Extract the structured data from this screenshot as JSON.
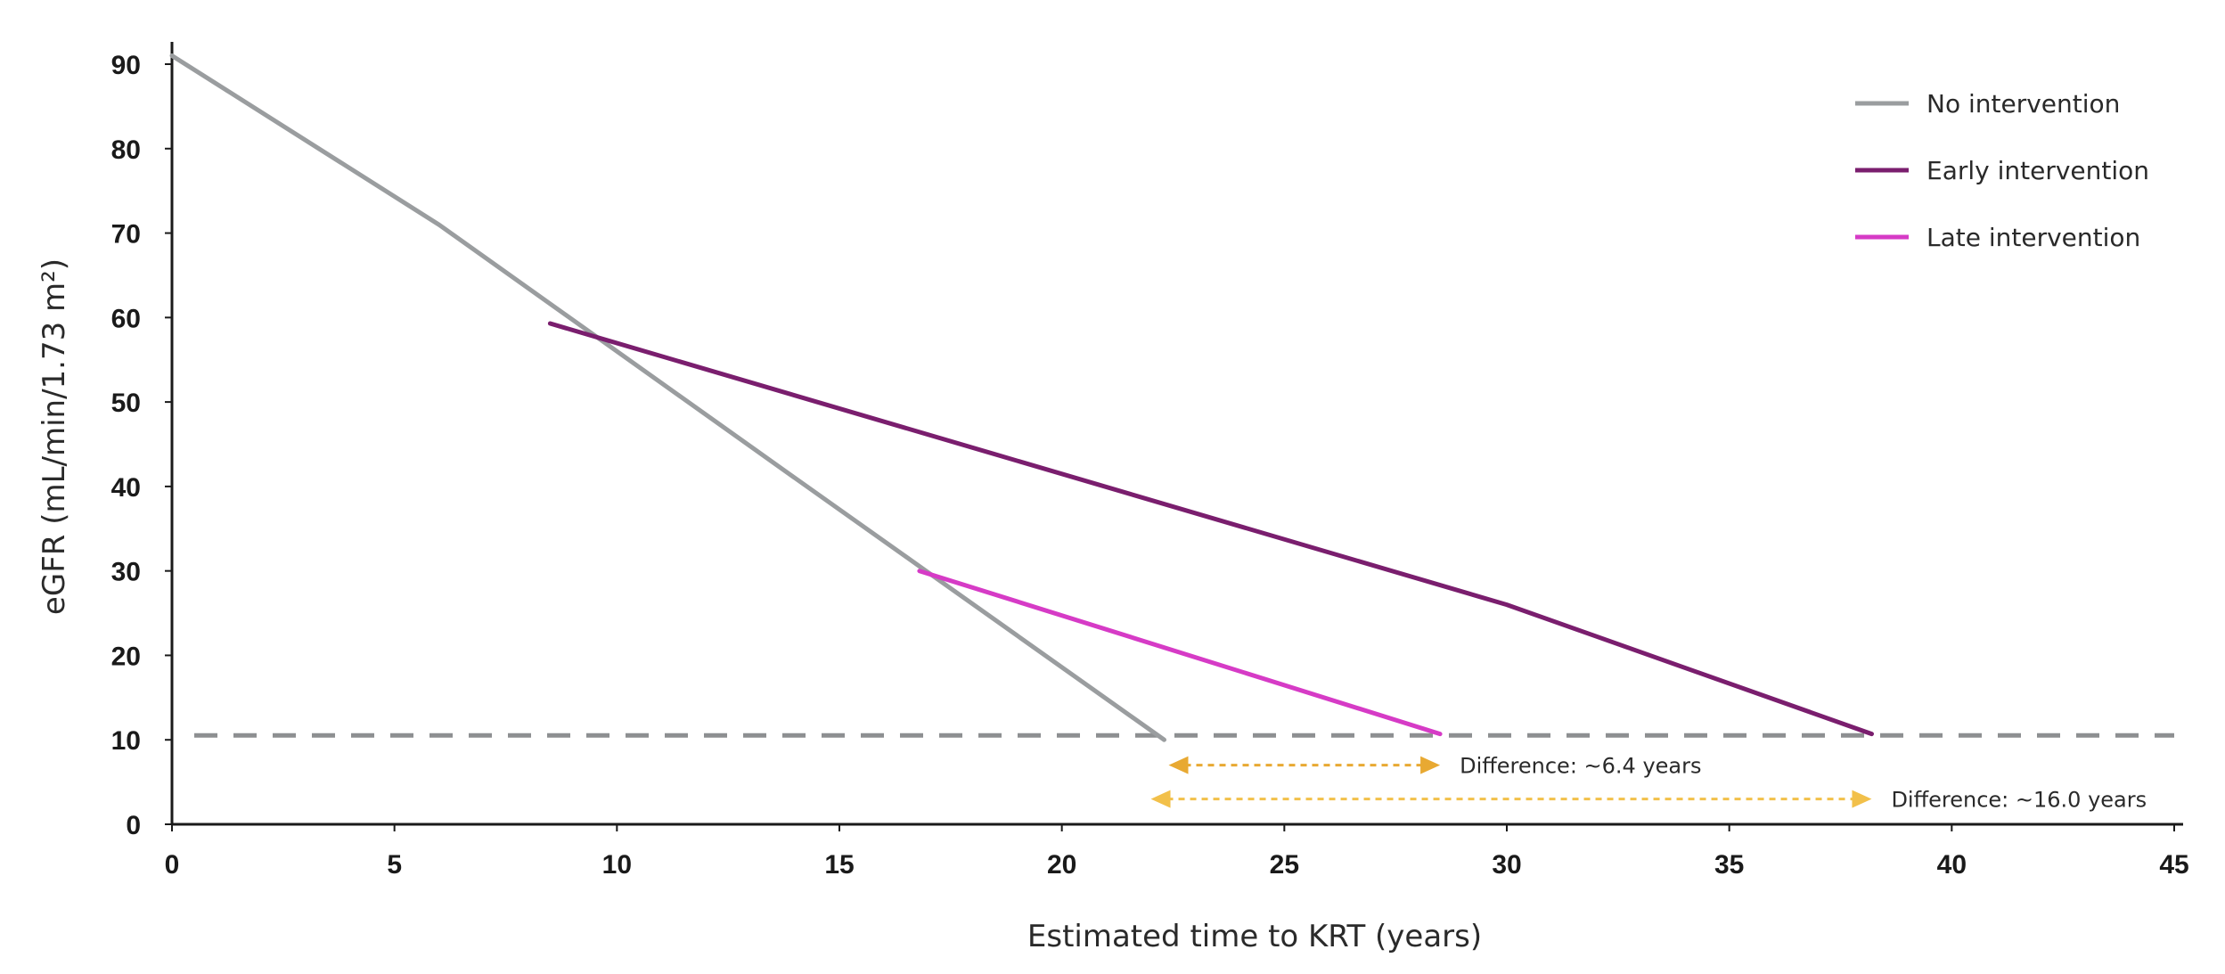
{
  "chart_data": {
    "type": "line",
    "xlabel": "Estimated time to KRT (years)",
    "ylabel": "eGFR (mL/min/1.73 m²)",
    "xlim": [
      0,
      45
    ],
    "ylim": [
      0,
      92
    ],
    "x_ticks": [
      0,
      5,
      10,
      15,
      20,
      25,
      30,
      35,
      40,
      45
    ],
    "y_ticks": [
      0,
      10,
      20,
      30,
      40,
      50,
      60,
      70,
      80,
      90
    ],
    "grid": false,
    "legend_position": "top-right",
    "series": [
      {
        "name": "No intervention",
        "color": "#9a9d9f",
        "points": [
          [
            0,
            91
          ],
          [
            1.2,
            87
          ],
          [
            6,
            71
          ],
          [
            14,
            41
          ],
          [
            22.3,
            10
          ]
        ]
      },
      {
        "name": "Early intervention",
        "color": "#7a1e6e",
        "points": [
          [
            8.5,
            59.3
          ],
          [
            30,
            26
          ],
          [
            38.2,
            10.7
          ]
        ]
      },
      {
        "name": "Late intervention",
        "color": "#d63bc6",
        "points": [
          [
            16.8,
            30
          ],
          [
            28.5,
            10.7
          ]
        ]
      }
    ],
    "reference_line": {
      "y": 10,
      "style": "dashed",
      "color": "#8d8f91"
    },
    "annotations": [
      {
        "label": "Difference: ~6.4 years",
        "x_start": 22.4,
        "x_end": 28.5,
        "y": 7,
        "color": "#e8a932"
      },
      {
        "label": "Difference: ~16.0 years",
        "x_start": 22.0,
        "x_end": 38.2,
        "y": 3,
        "color": "#f2c04a"
      }
    ]
  }
}
